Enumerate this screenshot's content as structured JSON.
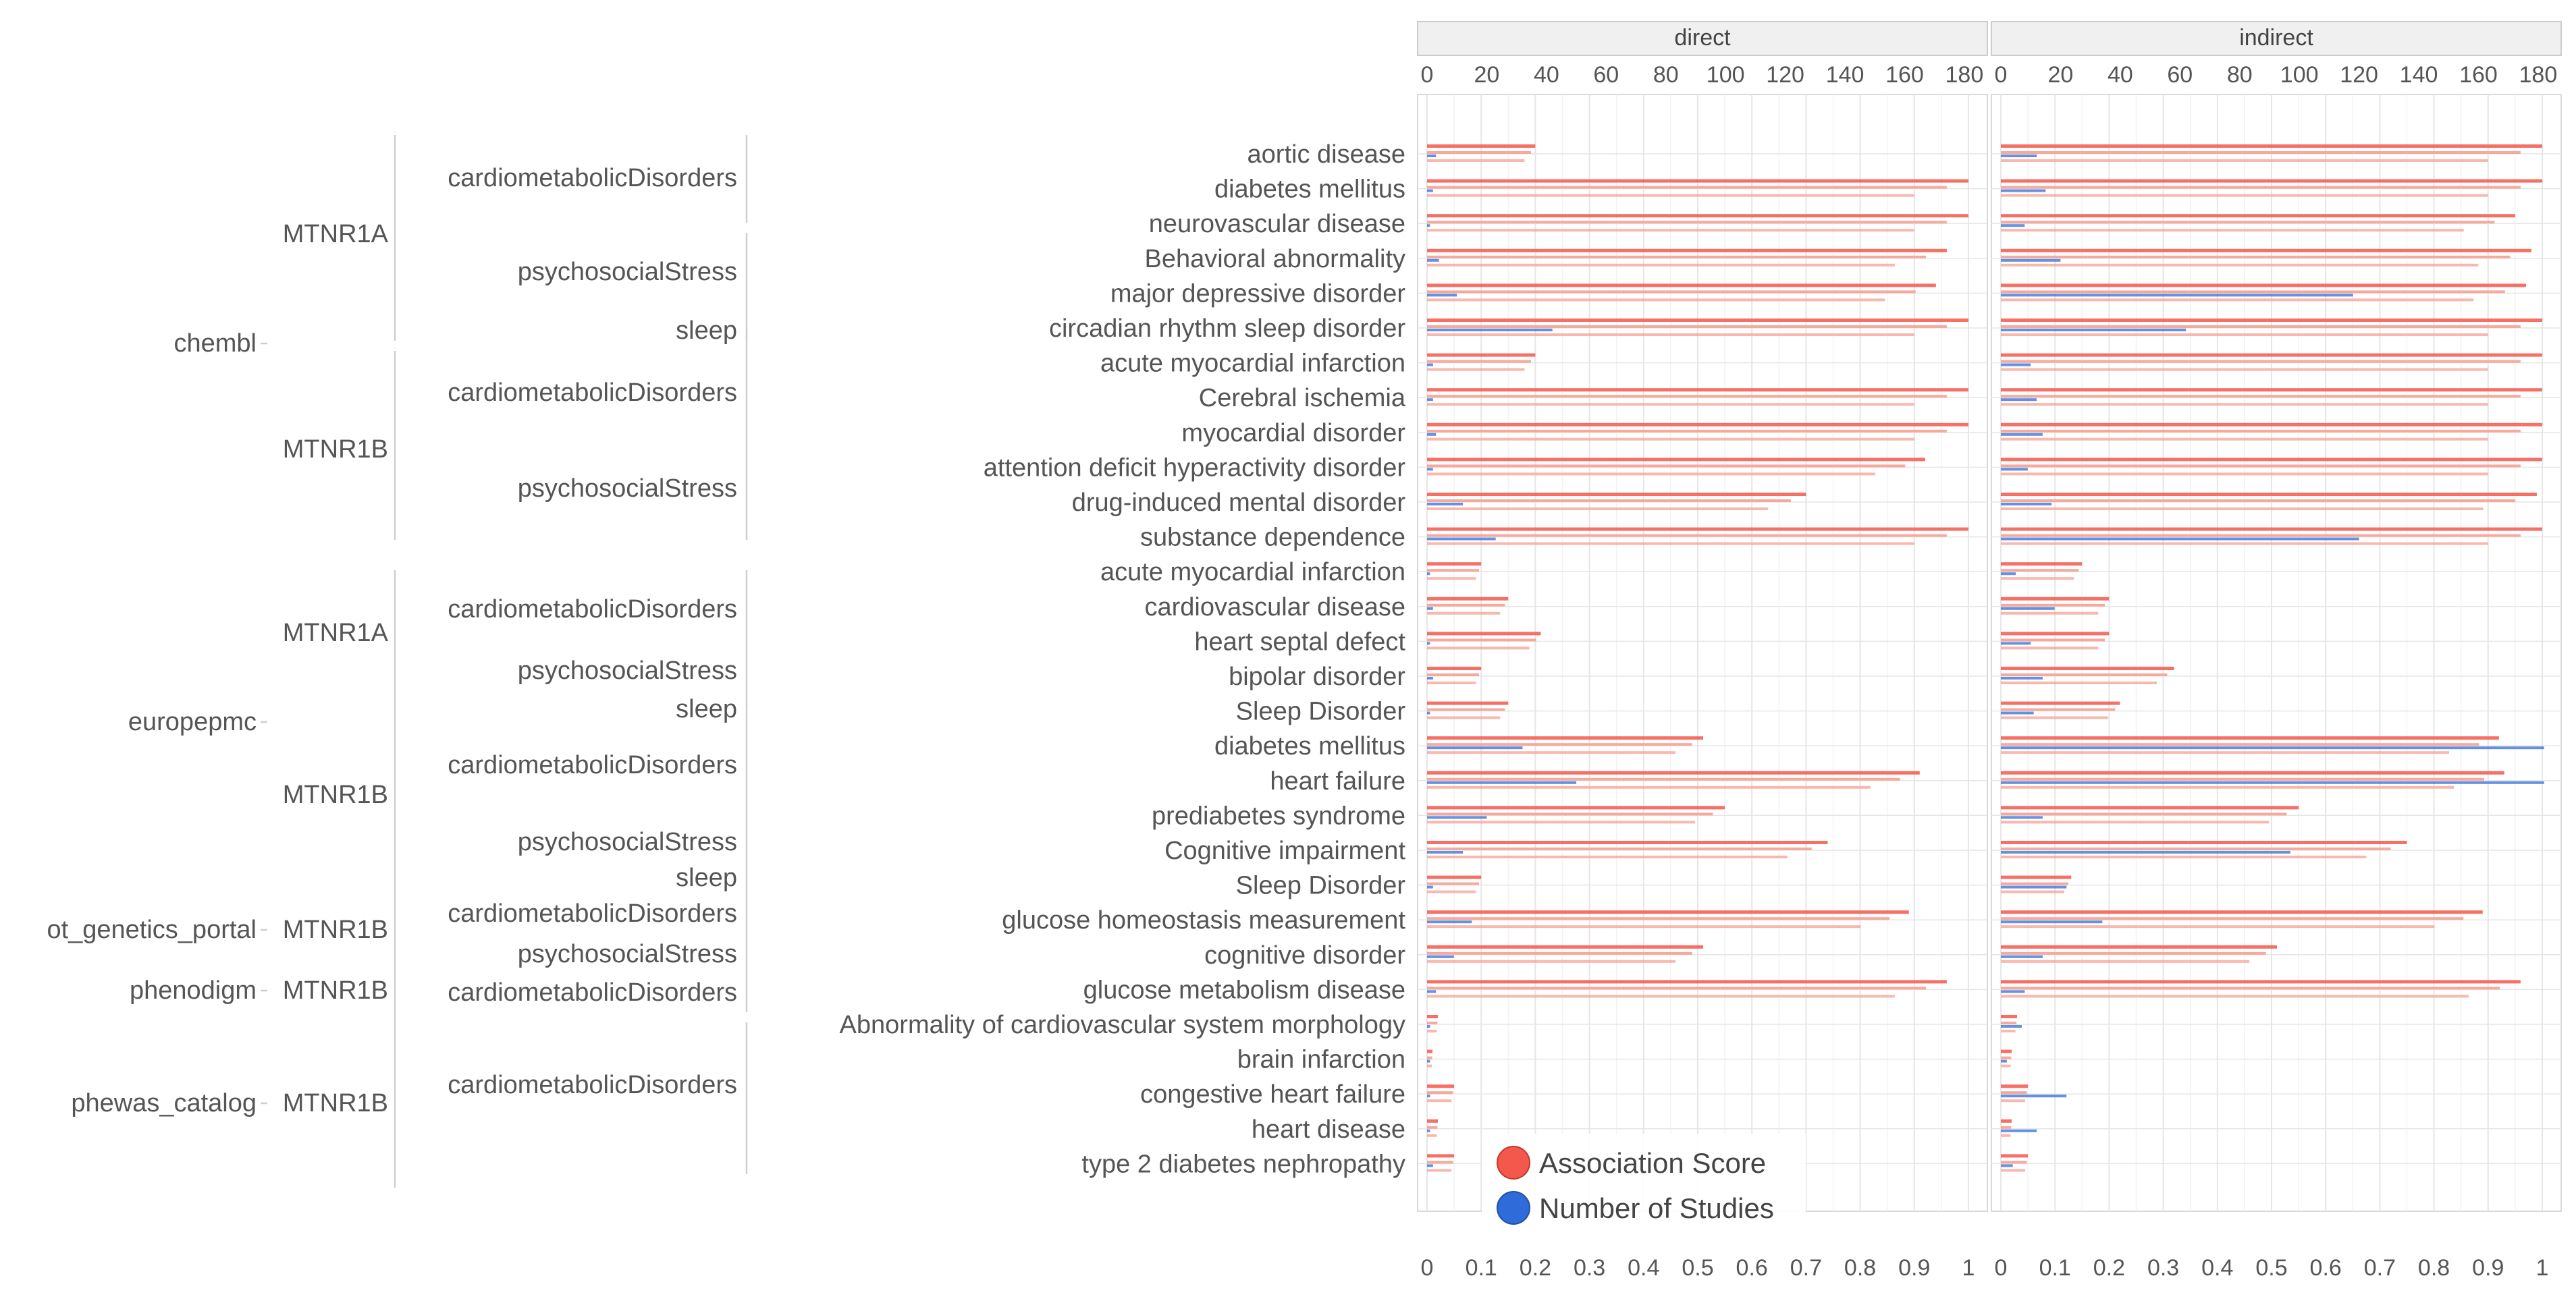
{
  "colors": {
    "association_score": "#F4574B",
    "association_score_light": "#F7A093",
    "number_of_studies": "#2F6CD9",
    "number_of_studies_light": "#8DAAE6",
    "grid": "#E6E6E6",
    "text": "#555555",
    "panel_border": "#CCCCCC",
    "strip_bg": "#F0F0F0"
  },
  "chart_data": {
    "type": "bar",
    "orientation": "horizontal",
    "facets": [
      "direct",
      "indirect"
    ],
    "top_axis": {
      "label": "Number of Studies",
      "range": [
        0,
        185
      ],
      "ticks": [
        "0",
        "20",
        "40",
        "60",
        "80",
        "100",
        "120",
        "140",
        "160",
        "180"
      ]
    },
    "bottom_axis": {
      "label": "Association Score",
      "range": [
        0,
        1.02
      ],
      "ticks": [
        "0",
        "0.1",
        "0.2",
        "0.3",
        "0.4",
        "0.5",
        "0.6",
        "0.7",
        "0.8",
        "0.9",
        "1"
      ]
    },
    "legend": {
      "position": "bottom-left",
      "items": [
        "Association Score",
        "Number of Studies"
      ]
    },
    "hierarchy": {
      "sources": [
        {
          "name": "chembl",
          "genes": [
            {
              "name": "MTNR1A",
              "groups": [
                "cardiometabolicDisorders",
                "psychosocialStress",
                "sleep"
              ]
            },
            {
              "name": "MTNR1B",
              "groups": [
                "cardiometabolicDisorders",
                "psychosocialStress"
              ]
            }
          ]
        },
        {
          "name": "europepmc",
          "genes": [
            {
              "name": "MTNR1A",
              "groups": [
                "cardiometabolicDisorders",
                "psychosocialStress",
                "sleep"
              ]
            },
            {
              "name": "MTNR1B",
              "groups": [
                "cardiometabolicDisorders",
                "psychosocialStress",
                "sleep"
              ]
            }
          ]
        },
        {
          "name": "ot_genetics_portal",
          "genes": [
            {
              "name": "MTNR1B",
              "groups": [
                "cardiometabolicDisorders",
                "psychosocialStress"
              ]
            }
          ]
        },
        {
          "name": "phenodigm",
          "genes": [
            {
              "name": "MTNR1B",
              "groups": [
                "cardiometabolicDisorders"
              ]
            }
          ]
        },
        {
          "name": "phewas_catalog",
          "genes": [
            {
              "name": "MTNR1B",
              "groups": [
                "cardiometabolicDisorders"
              ]
            }
          ]
        }
      ]
    },
    "diseases": [
      {
        "name": "aortic disease",
        "direct": {
          "score": 0.2,
          "studies": 3
        },
        "indirect": {
          "score": 1.0,
          "studies": 12
        }
      },
      {
        "name": "diabetes mellitus",
        "direct": {
          "score": 1.0,
          "studies": 2
        },
        "indirect": {
          "score": 1.0,
          "studies": 15
        }
      },
      {
        "name": "neurovascular disease",
        "direct": {
          "score": 1.0,
          "studies": 1
        },
        "indirect": {
          "score": 0.95,
          "studies": 8
        }
      },
      {
        "name": "Behavioral abnormality",
        "direct": {
          "score": 0.96,
          "studies": 4
        },
        "indirect": {
          "score": 0.98,
          "studies": 20
        }
      },
      {
        "name": "major depressive disorder",
        "direct": {
          "score": 0.94,
          "studies": 10
        },
        "indirect": {
          "score": 0.97,
          "studies": 118
        }
      },
      {
        "name": "circadian rhythm sleep disorder",
        "direct": {
          "score": 1.0,
          "studies": 42
        },
        "indirect": {
          "score": 1.0,
          "studies": 62
        }
      },
      {
        "name": "acute myocardial infarction",
        "direct": {
          "score": 0.2,
          "studies": 2
        },
        "indirect": {
          "score": 1.0,
          "studies": 10
        }
      },
      {
        "name": "Cerebral ischemia",
        "direct": {
          "score": 1.0,
          "studies": 2
        },
        "indirect": {
          "score": 1.0,
          "studies": 12
        }
      },
      {
        "name": "myocardial disorder",
        "direct": {
          "score": 1.0,
          "studies": 3
        },
        "indirect": {
          "score": 1.0,
          "studies": 14
        }
      },
      {
        "name": "attention deficit hyperactivity disorder",
        "direct": {
          "score": 0.92,
          "studies": 2
        },
        "indirect": {
          "score": 1.0,
          "studies": 9
        }
      },
      {
        "name": "drug-induced mental disorder",
        "direct": {
          "score": 0.7,
          "studies": 12
        },
        "indirect": {
          "score": 0.99,
          "studies": 17
        }
      },
      {
        "name": "substance dependence",
        "direct": {
          "score": 1.0,
          "studies": 23
        },
        "indirect": {
          "score": 1.0,
          "studies": 120
        }
      },
      {
        "name": "acute myocardial infarction",
        "direct": {
          "score": 0.1,
          "studies": 1
        },
        "indirect": {
          "score": 0.15,
          "studies": 5
        }
      },
      {
        "name": "cardiovascular disease",
        "direct": {
          "score": 0.15,
          "studies": 2
        },
        "indirect": {
          "score": 0.2,
          "studies": 18
        }
      },
      {
        "name": "heart septal defect",
        "direct": {
          "score": 0.21,
          "studies": 1
        },
        "indirect": {
          "score": 0.2,
          "studies": 10
        }
      },
      {
        "name": "bipolar disorder",
        "direct": {
          "score": 0.1,
          "studies": 2
        },
        "indirect": {
          "score": 0.32,
          "studies": 14
        }
      },
      {
        "name": "Sleep Disorder",
        "direct": {
          "score": 0.15,
          "studies": 1
        },
        "indirect": {
          "score": 0.22,
          "studies": 11
        }
      },
      {
        "name": "diabetes mellitus",
        "direct": {
          "score": 0.51,
          "studies": 32
        },
        "indirect": {
          "score": 0.92,
          "studies": 182
        }
      },
      {
        "name": "heart failure",
        "direct": {
          "score": 0.91,
          "studies": 50
        },
        "indirect": {
          "score": 0.93,
          "studies": 182
        }
      },
      {
        "name": "prediabetes syndrome",
        "direct": {
          "score": 0.55,
          "studies": 20
        },
        "indirect": {
          "score": 0.55,
          "studies": 14
        }
      },
      {
        "name": "Cognitive impairment",
        "direct": {
          "score": 0.74,
          "studies": 12
        },
        "indirect": {
          "score": 0.75,
          "studies": 97
        }
      },
      {
        "name": "Sleep Disorder",
        "direct": {
          "score": 0.1,
          "studies": 2
        },
        "indirect": {
          "score": 0.13,
          "studies": 22
        }
      },
      {
        "name": "glucose homeostasis measurement",
        "direct": {
          "score": 0.89,
          "studies": 15
        },
        "indirect": {
          "score": 0.89,
          "studies": 34
        }
      },
      {
        "name": "cognitive disorder",
        "direct": {
          "score": 0.51,
          "studies": 9
        },
        "indirect": {
          "score": 0.51,
          "studies": 14
        }
      },
      {
        "name": "glucose metabolism disease",
        "direct": {
          "score": 0.96,
          "studies": 3
        },
        "indirect": {
          "score": 0.96,
          "studies": 8
        }
      },
      {
        "name": "Abnormality of cardiovascular system morphology",
        "direct": {
          "score": 0.02,
          "studies": 1
        },
        "indirect": {
          "score": 0.03,
          "studies": 7
        }
      },
      {
        "name": "brain infarction",
        "direct": {
          "score": 0.01,
          "studies": 1
        },
        "indirect": {
          "score": 0.02,
          "studies": 2
        }
      },
      {
        "name": "congestive heart failure",
        "direct": {
          "score": 0.05,
          "studies": 1
        },
        "indirect": {
          "score": 0.05,
          "studies": 22
        }
      },
      {
        "name": "heart disease",
        "direct": {
          "score": 0.02,
          "studies": 1
        },
        "indirect": {
          "score": 0.02,
          "studies": 12
        }
      },
      {
        "name": "type 2 diabetes nephropathy",
        "direct": {
          "score": 0.05,
          "studies": 2
        },
        "indirect": {
          "score": 0.05,
          "studies": 4
        }
      }
    ]
  }
}
